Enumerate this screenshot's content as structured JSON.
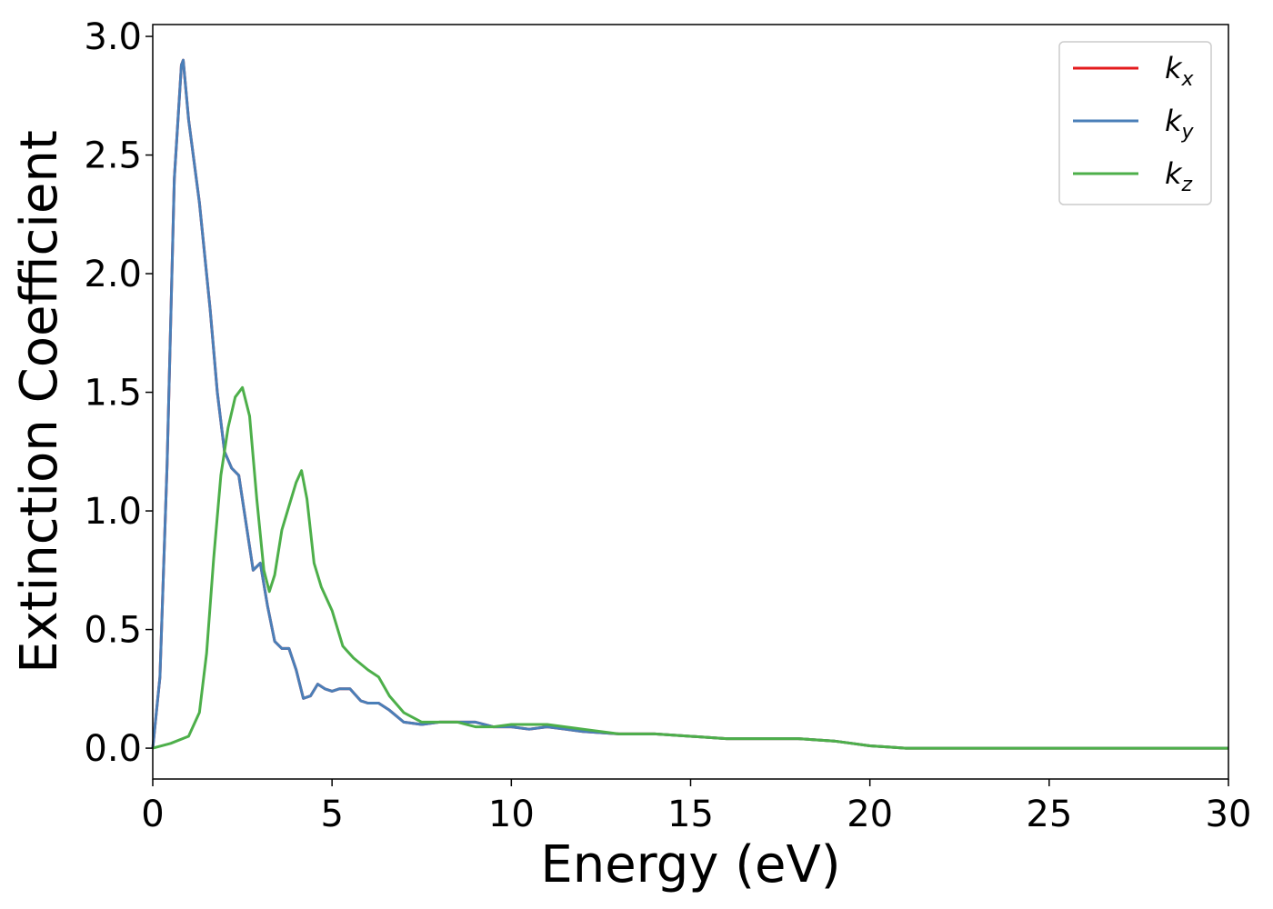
{
  "chart_data": {
    "type": "line",
    "title": "",
    "xlabel": "Energy (eV)",
    "ylabel": "Extinction Coefficient",
    "xlim": [
      0,
      30
    ],
    "ylim": [
      -0.13,
      3.05
    ],
    "xticks": [
      0,
      5,
      10,
      15,
      20,
      25,
      30
    ],
    "xtick_labels": [
      "0",
      "5",
      "10",
      "15",
      "20",
      "25",
      "30"
    ],
    "yticks": [
      0.0,
      0.5,
      1.0,
      1.5,
      2.0,
      2.5,
      3.0
    ],
    "ytick_labels": [
      "0.0",
      "0.5",
      "1.0",
      "1.5",
      "2.0",
      "2.5",
      "3.0"
    ],
    "grid": false,
    "legend_position": "top-right",
    "series": [
      {
        "name": "k_x",
        "label_base": "k",
        "label_sub": "x",
        "color": "#e41a1c",
        "x": [
          0,
          0.2,
          0.4,
          0.6,
          0.8,
          0.85,
          1.0,
          1.3,
          1.6,
          1.8,
          2.0,
          2.2,
          2.4,
          2.6,
          2.8,
          3.0,
          3.2,
          3.4,
          3.6,
          3.8,
          4.0,
          4.2,
          4.4,
          4.6,
          4.8,
          5.0,
          5.2,
          5.5,
          5.8,
          6.0,
          6.3,
          6.6,
          7.0,
          7.5,
          8.0,
          8.5,
          9.0,
          9.5,
          10.0,
          10.5,
          11.0,
          11.5,
          12.0,
          13.0,
          14.0,
          15.0,
          16.0,
          17.0,
          18.0,
          19.0,
          19.5,
          20.0,
          20.5,
          21.0,
          25.0,
          30.0
        ],
        "y": [
          0.0,
          0.3,
          1.2,
          2.4,
          2.88,
          2.9,
          2.65,
          2.3,
          1.85,
          1.5,
          1.25,
          1.18,
          1.15,
          0.95,
          0.75,
          0.78,
          0.6,
          0.45,
          0.42,
          0.42,
          0.33,
          0.21,
          0.22,
          0.27,
          0.25,
          0.24,
          0.25,
          0.25,
          0.2,
          0.19,
          0.19,
          0.16,
          0.11,
          0.1,
          0.11,
          0.11,
          0.11,
          0.09,
          0.09,
          0.08,
          0.09,
          0.08,
          0.07,
          0.06,
          0.06,
          0.05,
          0.04,
          0.04,
          0.04,
          0.03,
          0.02,
          0.01,
          0.005,
          0.0,
          0.0,
          0.0
        ]
      },
      {
        "name": "k_y",
        "label_base": "k",
        "label_sub": "y",
        "color": "#4a7fb8",
        "x": [
          0,
          0.2,
          0.4,
          0.6,
          0.8,
          0.85,
          1.0,
          1.3,
          1.6,
          1.8,
          2.0,
          2.2,
          2.4,
          2.6,
          2.8,
          3.0,
          3.2,
          3.4,
          3.6,
          3.8,
          4.0,
          4.2,
          4.4,
          4.6,
          4.8,
          5.0,
          5.2,
          5.5,
          5.8,
          6.0,
          6.3,
          6.6,
          7.0,
          7.5,
          8.0,
          8.5,
          9.0,
          9.5,
          10.0,
          10.5,
          11.0,
          11.5,
          12.0,
          13.0,
          14.0,
          15.0,
          16.0,
          17.0,
          18.0,
          19.0,
          19.5,
          20.0,
          20.5,
          21.0,
          25.0,
          30.0
        ],
        "y": [
          0.0,
          0.3,
          1.2,
          2.4,
          2.88,
          2.9,
          2.65,
          2.3,
          1.85,
          1.5,
          1.25,
          1.18,
          1.15,
          0.95,
          0.75,
          0.78,
          0.6,
          0.45,
          0.42,
          0.42,
          0.33,
          0.21,
          0.22,
          0.27,
          0.25,
          0.24,
          0.25,
          0.25,
          0.2,
          0.19,
          0.19,
          0.16,
          0.11,
          0.1,
          0.11,
          0.11,
          0.11,
          0.09,
          0.09,
          0.08,
          0.09,
          0.08,
          0.07,
          0.06,
          0.06,
          0.05,
          0.04,
          0.04,
          0.04,
          0.03,
          0.02,
          0.01,
          0.005,
          0.0,
          0.0,
          0.0
        ]
      },
      {
        "name": "k_z",
        "label_base": "k",
        "label_sub": "z",
        "color": "#4daf4a",
        "x": [
          0,
          0.5,
          1.0,
          1.3,
          1.5,
          1.7,
          1.9,
          2.1,
          2.3,
          2.5,
          2.7,
          2.9,
          3.1,
          3.25,
          3.4,
          3.6,
          3.8,
          4.0,
          4.15,
          4.3,
          4.5,
          4.7,
          5.0,
          5.3,
          5.6,
          6.0,
          6.3,
          6.6,
          7.0,
          7.5,
          8.0,
          8.5,
          9.0,
          9.5,
          10.0,
          10.5,
          11.0,
          11.5,
          12.0,
          13.0,
          14.0,
          15.0,
          16.0,
          17.0,
          18.0,
          19.0,
          19.5,
          20.0,
          20.5,
          21.0,
          25.0,
          30.0
        ],
        "y": [
          0.0,
          0.02,
          0.05,
          0.15,
          0.4,
          0.8,
          1.15,
          1.35,
          1.48,
          1.52,
          1.4,
          1.05,
          0.75,
          0.66,
          0.73,
          0.92,
          1.02,
          1.12,
          1.17,
          1.05,
          0.78,
          0.68,
          0.58,
          0.43,
          0.38,
          0.33,
          0.3,
          0.22,
          0.15,
          0.11,
          0.11,
          0.11,
          0.09,
          0.09,
          0.1,
          0.1,
          0.1,
          0.09,
          0.08,
          0.06,
          0.06,
          0.05,
          0.04,
          0.04,
          0.04,
          0.03,
          0.02,
          0.01,
          0.005,
          0.0,
          0.0,
          0.0
        ]
      }
    ]
  }
}
